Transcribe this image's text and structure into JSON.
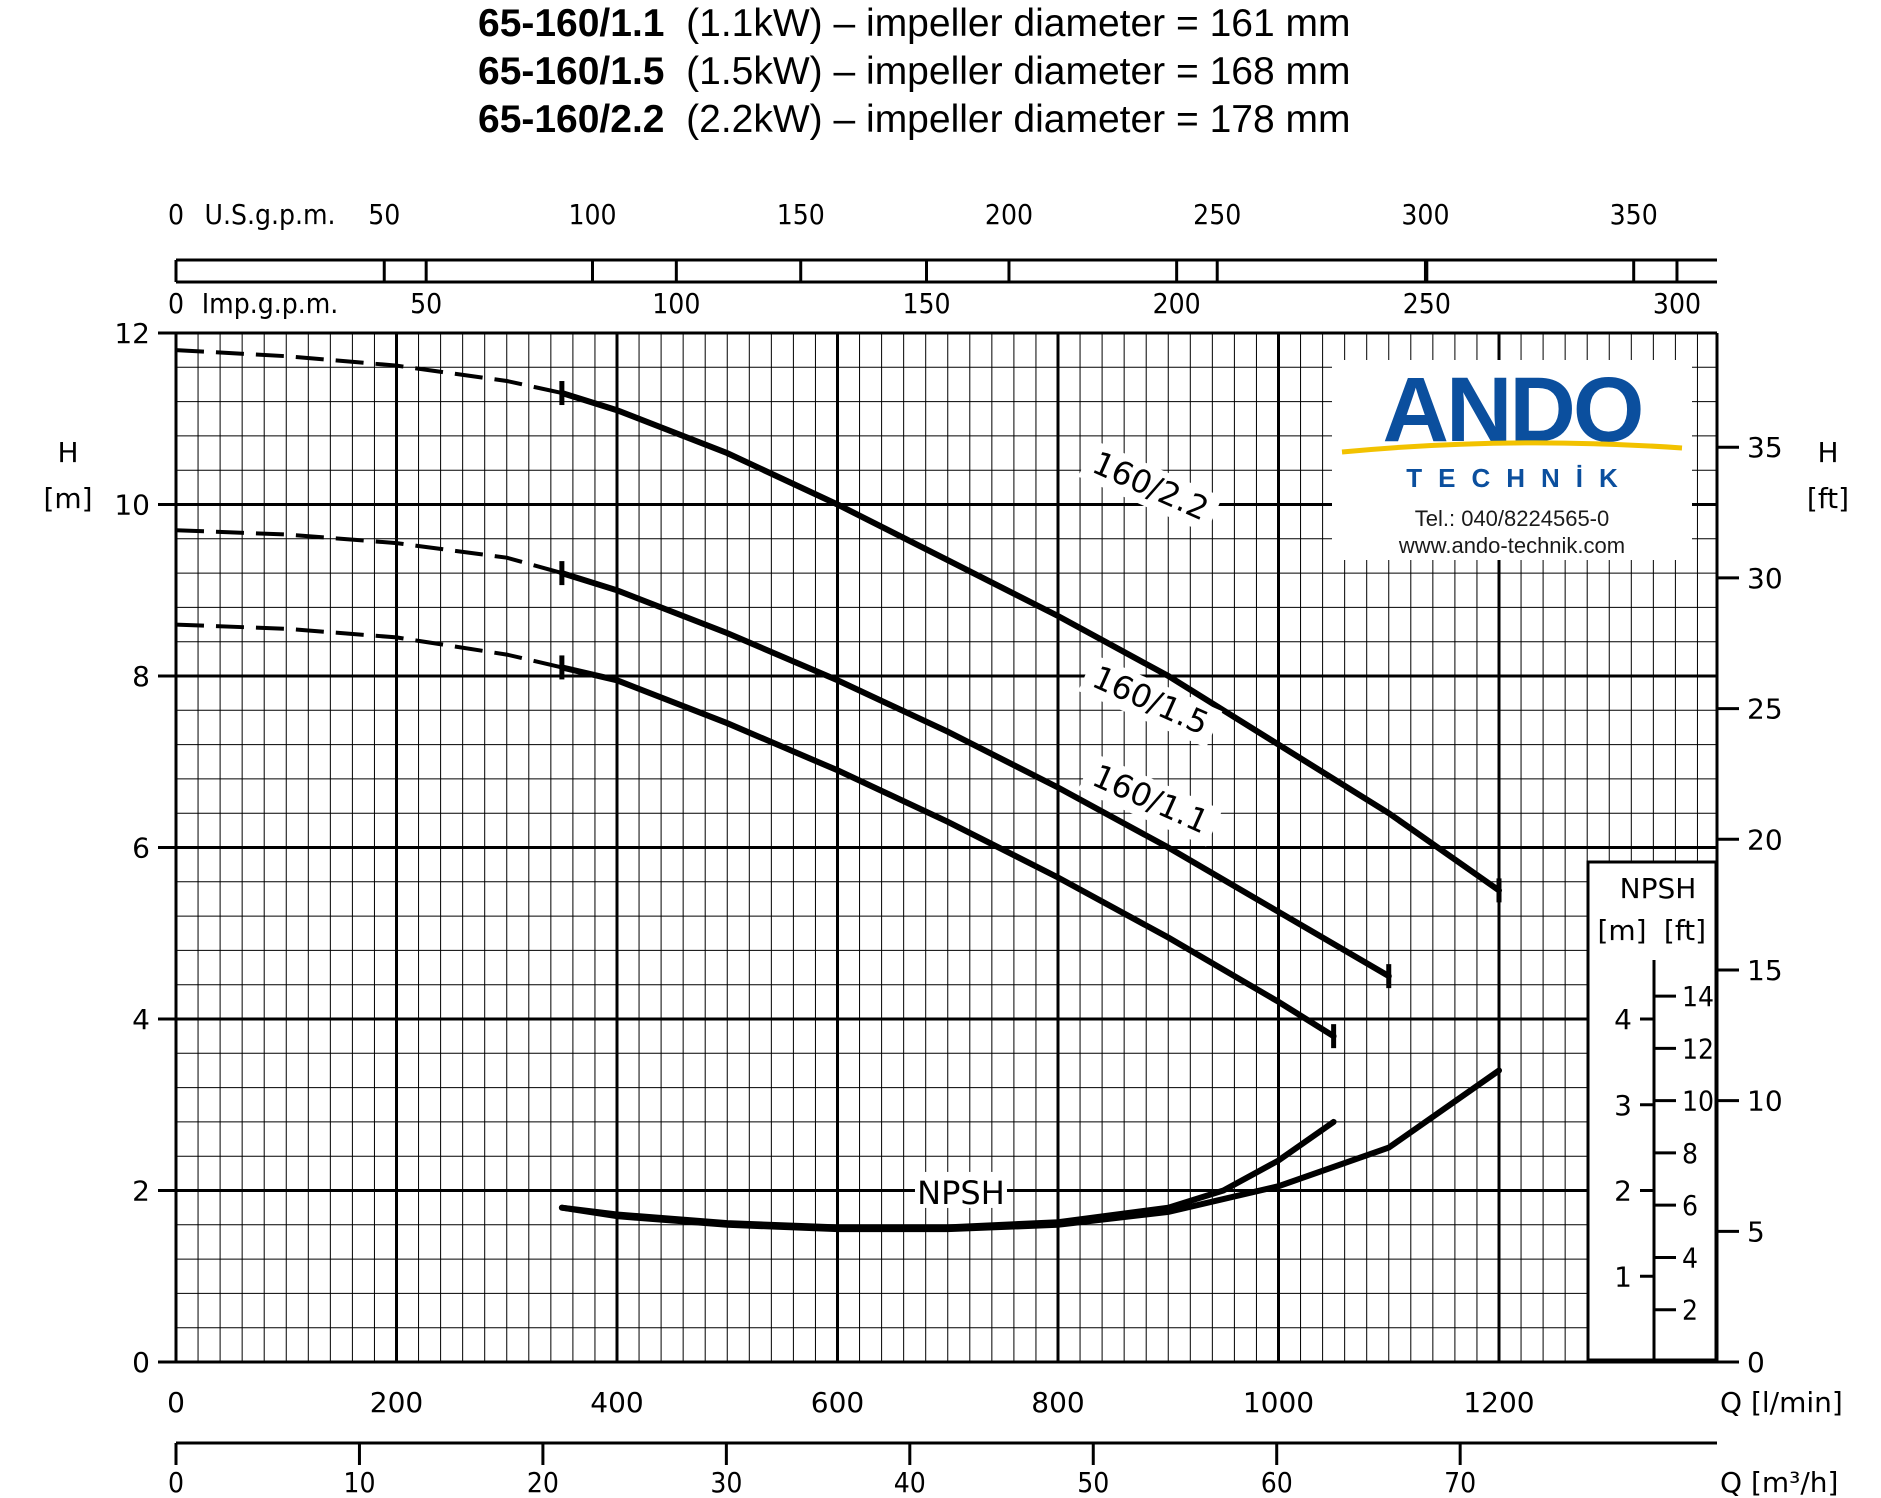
{
  "header": {
    "lines": [
      {
        "model": "65-160/1.1",
        "text": "(1.1kW) – impeller diameter = 161 mm"
      },
      {
        "model": "65-160/1.5",
        "text": "(1.5kW) – impeller diameter = 168 mm"
      },
      {
        "model": "65-160/2.2",
        "text": "(2.2kW) – impeller diameter = 178 mm"
      }
    ]
  },
  "logo": {
    "word": "ANDO",
    "sub": "TECHNİK",
    "tel": "Tel.: 040/8224565-0",
    "web": "www.ando-technik.com",
    "colors": {
      "blue": "#0b4f9e",
      "yellow": "#f2c200"
    }
  },
  "chart_data": {
    "type": "line",
    "x_unit_label": "Q [l/min]",
    "xlim": [
      0,
      1400
    ],
    "x_ticks": [
      0,
      200,
      400,
      600,
      800,
      1000,
      1200
    ],
    "y_label_left": [
      "H",
      "[m]"
    ],
    "ylim": [
      0,
      12
    ],
    "y_ticks": [
      0,
      2,
      4,
      6,
      8,
      10,
      12
    ],
    "y_label_right": [
      "H",
      "[ft]"
    ],
    "y_ticks_ft": [
      0,
      5,
      10,
      15,
      20,
      25,
      30,
      35
    ],
    "secondary_x_axes": [
      {
        "label": "Q [m³/h]",
        "position": "bottom",
        "ticks": [
          0,
          10,
          20,
          30,
          40,
          50,
          60,
          70
        ],
        "max": 84
      },
      {
        "label": "Imp.g.p.m.",
        "position": "top",
        "ticks": [
          0,
          50,
          100,
          150,
          200,
          250,
          300
        ],
        "max": 308
      },
      {
        "label": "U.S.g.p.m.",
        "position": "top",
        "ticks": [
          0,
          50,
          100,
          150,
          200,
          250,
          300,
          350
        ],
        "max": 370
      }
    ],
    "npsh_scale": {
      "title": "NPSH",
      "units": [
        "[m]",
        "[ft]"
      ],
      "ticks_m": [
        1,
        2,
        3,
        4
      ],
      "ticks_ft": [
        2,
        4,
        6,
        8,
        10,
        12,
        14
      ]
    },
    "grid": true,
    "series": [
      {
        "name": "160/2.2",
        "dashed_part": {
          "x": [
            0,
            100,
            200,
            300,
            350
          ],
          "y": [
            11.8,
            11.73,
            11.62,
            11.44,
            11.3
          ]
        },
        "x": [
          350,
          400,
          500,
          600,
          700,
          800,
          900,
          1000,
          1100,
          1200
        ],
        "y": [
          11.3,
          11.1,
          10.6,
          10.0,
          9.35,
          8.7,
          8.0,
          7.2,
          6.4,
          5.5
        ]
      },
      {
        "name": "160/1.5",
        "dashed_part": {
          "x": [
            0,
            100,
            200,
            300,
            350
          ],
          "y": [
            9.7,
            9.65,
            9.55,
            9.38,
            9.2
          ]
        },
        "x": [
          350,
          400,
          500,
          600,
          700,
          800,
          900,
          1000,
          1100
        ],
        "y": [
          9.2,
          9.0,
          8.5,
          7.95,
          7.35,
          6.7,
          6.0,
          5.25,
          4.5
        ]
      },
      {
        "name": "160/1.1",
        "dashed_part": {
          "x": [
            0,
            100,
            200,
            300,
            350
          ],
          "y": [
            8.6,
            8.55,
            8.45,
            8.25,
            8.1
          ]
        },
        "x": [
          350,
          400,
          500,
          600,
          700,
          800,
          900,
          1000,
          1050
        ],
        "y": [
          8.1,
          7.95,
          7.45,
          6.9,
          6.3,
          5.65,
          4.95,
          4.2,
          3.8
        ]
      },
      {
        "name": "NPSH",
        "label": "NPSH",
        "x": [
          350,
          400,
          500,
          600,
          700,
          800,
          900,
          1000,
          1100,
          1200
        ],
        "y": [
          1.8,
          1.7,
          1.6,
          1.55,
          1.55,
          1.6,
          1.75,
          2.05,
          2.5,
          3.4
        ]
      },
      {
        "name": "",
        "x": [
          350,
          400,
          500,
          600,
          700,
          800,
          900,
          950,
          1000,
          1050
        ],
        "y": [
          1.8,
          1.72,
          1.62,
          1.57,
          1.57,
          1.63,
          1.8,
          2.0,
          2.35,
          2.8
        ]
      }
    ]
  }
}
